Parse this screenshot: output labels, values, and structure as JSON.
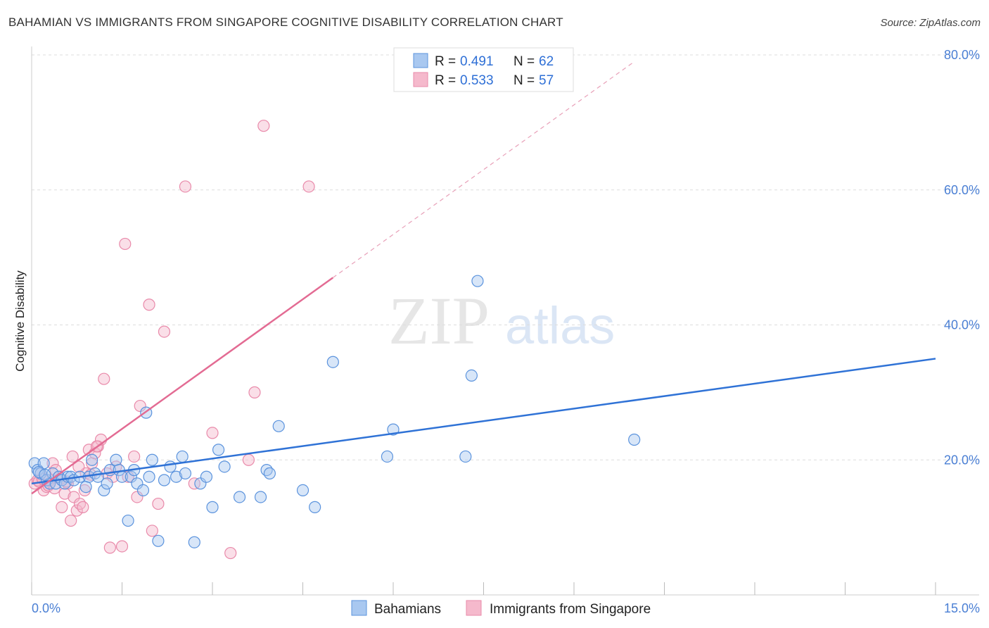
{
  "title": "BAHAMIAN VS IMMIGRANTS FROM SINGAPORE COGNITIVE DISABILITY CORRELATION CHART",
  "source": "Source: ZipAtlas.com",
  "watermark": {
    "zip": "ZIP",
    "atlas": "atlas"
  },
  "colors": {
    "blue_fill": "#a9c8f0",
    "blue_stroke": "#5b93dd",
    "blue_line": "#2f72d6",
    "pink_fill": "#f5b9cc",
    "pink_stroke": "#e98aaa",
    "pink_line": "#e36b93",
    "grid": "#dddddd",
    "axis_text": "#4a7fd4"
  },
  "legend": {
    "series": [
      {
        "r_label": "R =",
        "r_value": "0.491",
        "n_label": "N =",
        "n_value": "62"
      },
      {
        "r_label": "R =",
        "r_value": "0.533",
        "n_label": "N =",
        "n_value": "57"
      }
    ]
  },
  "bottom_legend": [
    "Bahamians",
    "Immigrants from Singapore"
  ],
  "chart_data": {
    "type": "scatter",
    "title": "BAHAMIAN VS IMMIGRANTS FROM SINGAPORE COGNITIVE DISABILITY CORRELATION CHART",
    "xlabel": "",
    "ylabel": "Cognitive Disability",
    "xlim": [
      0,
      15
    ],
    "ylim": [
      0,
      80
    ],
    "x_tick_labels": [
      "0.0%",
      "15.0%"
    ],
    "y_tick_labels": [
      "20.0%",
      "40.0%",
      "60.0%",
      "80.0%"
    ],
    "y_ticks": [
      20,
      40,
      60,
      80
    ],
    "series": [
      {
        "name": "Bahamians",
        "color": "blue",
        "trend": {
          "x0": 0,
          "y0": 16.5,
          "x1": 15,
          "y1": 35.0
        },
        "points": [
          [
            0.05,
            19.5
          ],
          [
            0.1,
            18.5
          ],
          [
            0.15,
            18.0
          ],
          [
            0.2,
            19.5
          ],
          [
            0.25,
            17.0
          ],
          [
            0.3,
            16.5
          ],
          [
            0.35,
            18.0
          ],
          [
            0.4,
            16.5
          ],
          [
            0.45,
            17.5
          ],
          [
            0.5,
            17.0
          ],
          [
            0.55,
            16.5
          ],
          [
            0.6,
            17.5
          ],
          [
            0.65,
            17.5
          ],
          [
            0.7,
            17.0
          ],
          [
            0.8,
            17.5
          ],
          [
            0.9,
            16.0
          ],
          [
            0.95,
            17.5
          ],
          [
            1.0,
            20.0
          ],
          [
            1.05,
            18.0
          ],
          [
            1.1,
            17.5
          ],
          [
            1.2,
            15.5
          ],
          [
            1.25,
            16.5
          ],
          [
            1.3,
            18.5
          ],
          [
            1.4,
            20.0
          ],
          [
            1.45,
            18.5
          ],
          [
            1.5,
            17.5
          ],
          [
            1.6,
            11.0
          ],
          [
            1.65,
            17.5
          ],
          [
            1.7,
            18.5
          ],
          [
            1.75,
            16.5
          ],
          [
            1.85,
            15.5
          ],
          [
            1.9,
            27.0
          ],
          [
            1.95,
            17.5
          ],
          [
            2.0,
            20.0
          ],
          [
            2.1,
            8.0
          ],
          [
            2.2,
            17.0
          ],
          [
            2.3,
            19.0
          ],
          [
            2.4,
            17.5
          ],
          [
            2.5,
            20.5
          ],
          [
            2.55,
            18.0
          ],
          [
            2.7,
            7.8
          ],
          [
            2.8,
            16.5
          ],
          [
            2.9,
            17.5
          ],
          [
            3.0,
            13.0
          ],
          [
            3.1,
            21.5
          ],
          [
            3.2,
            19.0
          ],
          [
            3.45,
            14.5
          ],
          [
            3.8,
            14.5
          ],
          [
            3.9,
            18.5
          ],
          [
            3.95,
            18.0
          ],
          [
            4.1,
            25.0
          ],
          [
            4.5,
            15.5
          ],
          [
            4.7,
            13.0
          ],
          [
            5.0,
            34.5
          ],
          [
            5.9,
            20.5
          ],
          [
            6.0,
            24.5
          ],
          [
            7.2,
            20.5
          ],
          [
            7.3,
            32.5
          ],
          [
            7.4,
            46.5
          ],
          [
            10.0,
            23.0
          ],
          [
            0.12,
            18.2
          ],
          [
            0.22,
            17.8
          ]
        ]
      },
      {
        "name": "Immigrants from Singapore",
        "color": "pink",
        "trend": {
          "x0": 0,
          "y0": 15.0,
          "x1": 5.0,
          "y1": 47.0,
          "dash_x1": 10.0,
          "dash_y1": 79.0
        },
        "points": [
          [
            0.05,
            16.5
          ],
          [
            0.1,
            17.0
          ],
          [
            0.15,
            18.0
          ],
          [
            0.2,
            15.5
          ],
          [
            0.25,
            16.0
          ],
          [
            0.3,
            17.0
          ],
          [
            0.35,
            19.5
          ],
          [
            0.4,
            18.5
          ],
          [
            0.45,
            17.5
          ],
          [
            0.5,
            13.0
          ],
          [
            0.55,
            15.0
          ],
          [
            0.6,
            16.5
          ],
          [
            0.65,
            11.0
          ],
          [
            0.7,
            14.5
          ],
          [
            0.75,
            12.5
          ],
          [
            0.8,
            13.5
          ],
          [
            0.85,
            13.0
          ],
          [
            0.9,
            18.0
          ],
          [
            0.95,
            21.5
          ],
          [
            1.0,
            19.5
          ],
          [
            1.05,
            21.0
          ],
          [
            1.1,
            22.0
          ],
          [
            1.15,
            23.0
          ],
          [
            1.2,
            32.0
          ],
          [
            1.25,
            18.0
          ],
          [
            1.3,
            7.0
          ],
          [
            1.35,
            17.5
          ],
          [
            1.4,
            19.0
          ],
          [
            1.5,
            7.2
          ],
          [
            1.55,
            52.0
          ],
          [
            1.6,
            17.5
          ],
          [
            1.7,
            20.5
          ],
          [
            1.75,
            14.5
          ],
          [
            1.8,
            28.0
          ],
          [
            1.95,
            43.0
          ],
          [
            2.0,
            9.5
          ],
          [
            2.1,
            13.5
          ],
          [
            2.2,
            39.0
          ],
          [
            2.55,
            60.5
          ],
          [
            2.7,
            16.5
          ],
          [
            3.0,
            24.0
          ],
          [
            3.3,
            6.2
          ],
          [
            3.6,
            20.0
          ],
          [
            3.7,
            30.0
          ],
          [
            3.85,
            69.5
          ],
          [
            4.6,
            60.5
          ],
          [
            0.12,
            16.8
          ],
          [
            0.18,
            17.2
          ],
          [
            0.28,
            16.2
          ],
          [
            0.38,
            15.8
          ],
          [
            0.48,
            17.2
          ],
          [
            0.58,
            16.8
          ],
          [
            0.68,
            20.5
          ],
          [
            0.78,
            19.0
          ],
          [
            0.88,
            15.5
          ],
          [
            0.98,
            17.8
          ],
          [
            1.08,
            22.0
          ]
        ]
      }
    ]
  }
}
